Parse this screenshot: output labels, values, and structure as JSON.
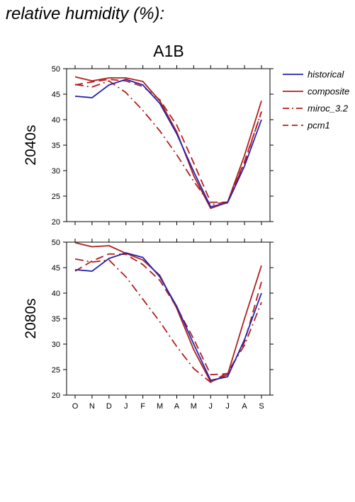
{
  "title": "relative humidity (%):",
  "scenario": "A1B",
  "colors": {
    "historical": "#2323b0",
    "composite": "#b21e1e",
    "miroc_3.2": "#b21e1e",
    "pcm1": "#b21e1e"
  },
  "legend": [
    {
      "name": "historical",
      "style": "solid",
      "color": "#2323b0"
    },
    {
      "name": "composite",
      "style": "solid",
      "color": "#b21e1e"
    },
    {
      "name": "miroc_3.2",
      "style": "dashdot",
      "color": "#b21e1e"
    },
    {
      "name": "pcm1",
      "style": "dashed",
      "color": "#b21e1e"
    }
  ],
  "chart_data": [
    {
      "type": "line",
      "panel_label": "2040s",
      "categories": [
        "O",
        "N",
        "D",
        "J",
        "F",
        "M",
        "A",
        "M",
        "J",
        "J",
        "A",
        "S"
      ],
      "ylim": [
        20,
        50
      ],
      "yticks": [
        20,
        25,
        30,
        35,
        40,
        45,
        50
      ],
      "grid": false,
      "legend_position": "right",
      "series": [
        {
          "name": "historical",
          "values": [
            44.6,
            44.3,
            46.8,
            47.9,
            46.8,
            43.2,
            37.2,
            29.8,
            22.9,
            23.7,
            30.9,
            40.0
          ]
        },
        {
          "name": "composite",
          "values": [
            48.4,
            47.6,
            48.2,
            48.2,
            47.5,
            43.7,
            37.6,
            29.0,
            22.6,
            23.8,
            33.0,
            43.7
          ]
        },
        {
          "name": "miroc_3.2",
          "values": [
            46.9,
            46.4,
            47.6,
            45.3,
            41.8,
            37.8,
            33.1,
            27.9,
            23.3,
            23.9,
            31.5,
            41.6
          ]
        },
        {
          "name": "pcm1",
          "values": [
            46.8,
            47.4,
            47.9,
            47.6,
            46.5,
            43.9,
            38.9,
            31.5,
            23.8,
            23.8,
            31.8,
            41.5
          ]
        }
      ]
    },
    {
      "type": "line",
      "panel_label": "2080s",
      "categories": [
        "O",
        "N",
        "D",
        "J",
        "F",
        "M",
        "A",
        "M",
        "J",
        "J",
        "A",
        "S"
      ],
      "ylim": [
        20,
        50
      ],
      "yticks": [
        20,
        25,
        30,
        35,
        40,
        45,
        50
      ],
      "grid": false,
      "legend_position": "right",
      "series": [
        {
          "name": "historical",
          "values": [
            44.6,
            44.3,
            46.8,
            47.9,
            47.0,
            43.2,
            37.4,
            30.0,
            22.9,
            23.6,
            30.9,
            40.0
          ]
        },
        {
          "name": "composite",
          "values": [
            49.9,
            49.1,
            49.3,
            47.8,
            46.5,
            43.5,
            37.0,
            28.9,
            22.6,
            24.0,
            35.0,
            45.4
          ]
        },
        {
          "name": "miroc_3.2",
          "values": [
            46.7,
            46.1,
            46.5,
            43.2,
            38.8,
            34.4,
            29.5,
            25.2,
            22.5,
            24.4,
            29.8,
            38.2
          ]
        },
        {
          "name": "pcm1",
          "values": [
            44.3,
            46.3,
            47.7,
            47.6,
            45.6,
            42.5,
            37.2,
            31.0,
            24.0,
            24.2,
            30.4,
            42.2
          ]
        }
      ]
    }
  ]
}
